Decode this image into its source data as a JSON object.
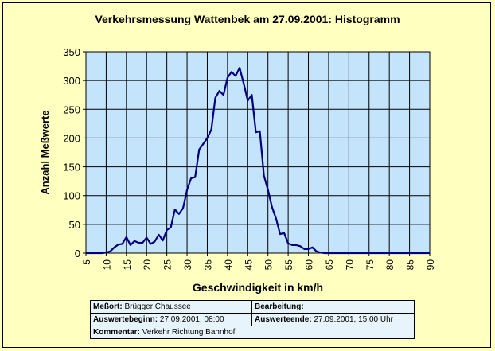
{
  "chart_data": {
    "type": "line",
    "title": "Verkehrsmessung Wattenbek am 27.09.2001: Histogramm",
    "xlabel": "Geschwindigkeit in km/h",
    "ylabel": "Anzahl Meßwerte",
    "xlim": [
      5,
      90
    ],
    "ylim": [
      0,
      350
    ],
    "xticks": [
      "5",
      "10",
      "15",
      "20",
      "25",
      "30",
      "35",
      "40",
      "45",
      "50",
      "55",
      "60",
      "65",
      "70",
      "75",
      "80",
      "85",
      "90"
    ],
    "yticks": [
      "0",
      "50",
      "100",
      "150",
      "200",
      "250",
      "300",
      "350"
    ],
    "grid": true,
    "colors": {
      "plot_background": "#c4e4fb",
      "line": "#000080",
      "page_background": "#ffffc0"
    },
    "series": [
      {
        "x": [
          5,
          6,
          7,
          8,
          9,
          10,
          11,
          12,
          13,
          14,
          15,
          16,
          17,
          18,
          19,
          20,
          21,
          22,
          23,
          24,
          25,
          26,
          27,
          28,
          29,
          30,
          31,
          32,
          33,
          34,
          35,
          36,
          37,
          38,
          39,
          40,
          41,
          42,
          43,
          44,
          45,
          46,
          47,
          48,
          49,
          50,
          51,
          52,
          53,
          54,
          55,
          56,
          57,
          58,
          59,
          60,
          61,
          62,
          63,
          64,
          65,
          66,
          67,
          68,
          69,
          70,
          71,
          72,
          73,
          74,
          75,
          76,
          77,
          78,
          79,
          80,
          81,
          82,
          83,
          84,
          85,
          86,
          87,
          88,
          89,
          90
        ],
        "values": [
          0,
          0,
          0,
          0,
          0,
          1,
          3,
          10,
          15,
          16,
          28,
          14,
          21,
          18,
          18,
          27,
          16,
          20,
          32,
          22,
          40,
          45,
          76,
          68,
          78,
          110,
          130,
          132,
          180,
          190,
          200,
          215,
          270,
          282,
          275,
          305,
          315,
          308,
          322,
          295,
          265,
          275,
          210,
          212,
          135,
          110,
          80,
          60,
          33,
          35,
          17,
          14,
          14,
          12,
          7,
          7,
          10,
          3,
          1,
          0,
          0,
          0,
          0,
          0,
          0,
          0,
          0,
          0,
          0,
          0,
          0,
          0,
          0,
          0,
          0,
          0,
          0,
          0,
          0,
          0,
          0,
          0,
          0,
          0,
          0,
          0
        ]
      }
    ]
  },
  "info": {
    "messort_label": "Meßort:",
    "messort_value": "Brügger Chaussee",
    "bearbeitung_label": "Bearbeitung:",
    "bearbeitung_value": "",
    "beginn_label": "Auswertebeginn:",
    "beginn_value": "27.09.2001, 08:00",
    "ende_label": "Auswerteende:",
    "ende_value": "27.09.2001, 15:00 Uhr",
    "kommentar_label": "Kommentar:",
    "kommentar_value": "Verkehr Richtung Bahnhof"
  }
}
